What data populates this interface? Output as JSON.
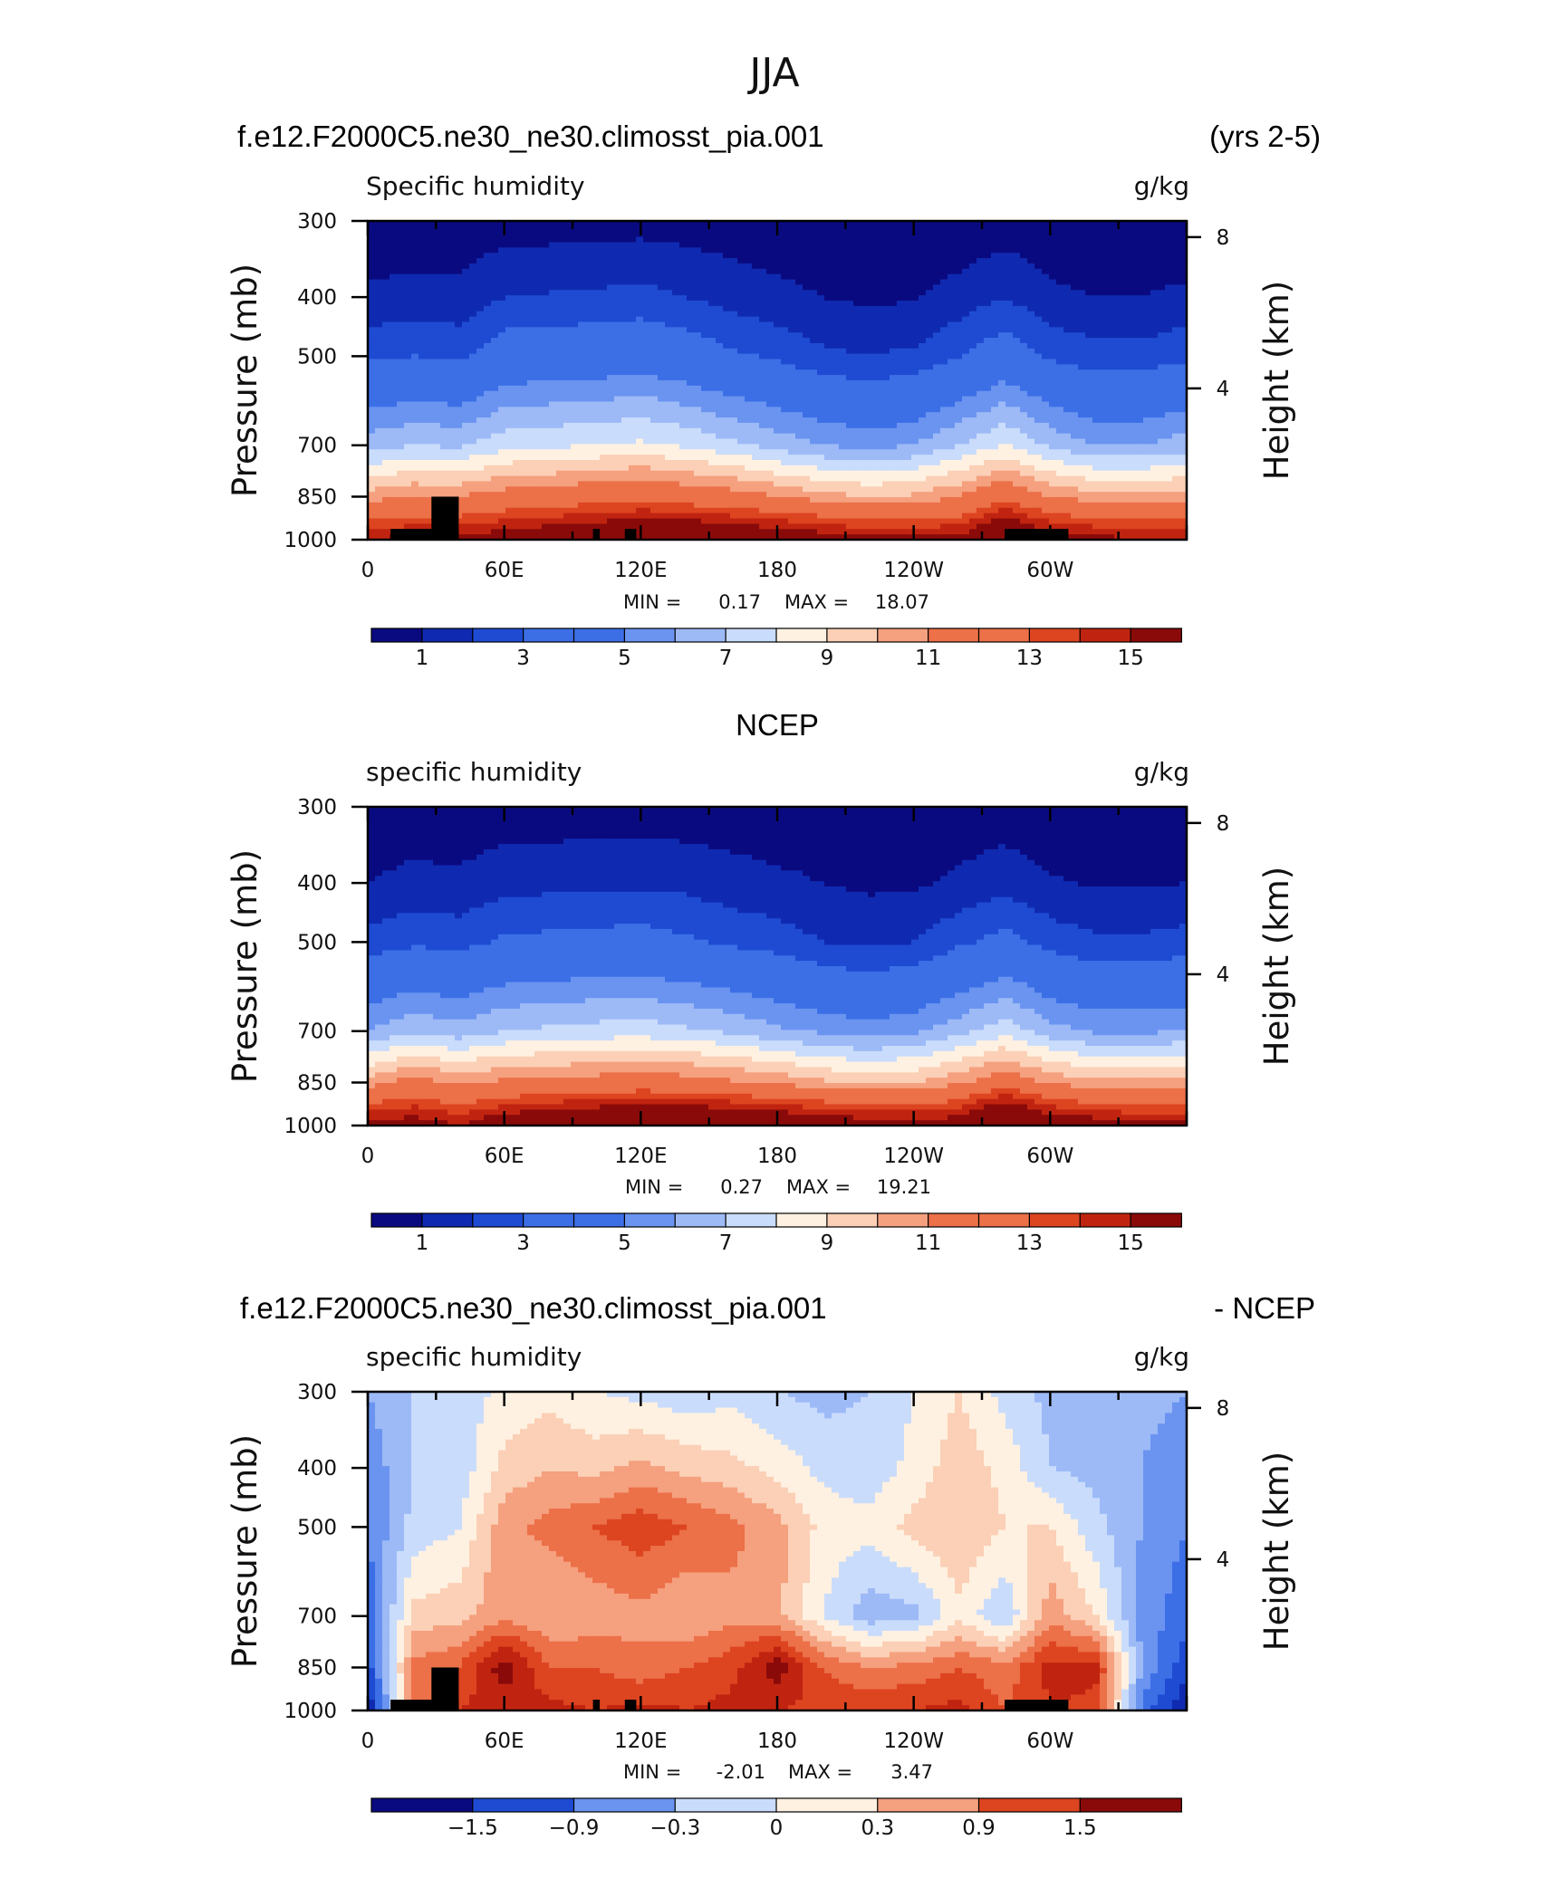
{
  "figure": {
    "title": "JJA",
    "header_left": "f.e12.F2000C5.ne30_ne30.climosst_pia.001",
    "header_right": "(yrs 2-5)",
    "middle_header": "NCEP",
    "bottom_header_left": "f.e12.F2000C5.ne30_ne30.climosst_pia.001",
    "bottom_header_right": "- NCEP"
  },
  "panels": [
    {
      "left_label": "Specific humidity",
      "right_label": "g/kg",
      "ylabel": "Pressure (mb)",
      "y2label": "Height (km)",
      "min_text": "MIN =",
      "min_value": "0.17",
      "max_text": "MAX =",
      "max_value": "18.07",
      "colorbar_labels": [
        "1",
        "3",
        "5",
        "7",
        "9",
        "11",
        "13",
        "15"
      ]
    },
    {
      "left_label": "specific humidity",
      "right_label": "g/kg",
      "ylabel": "Pressure (mb)",
      "y2label": "Height (km)",
      "min_text": "MIN =",
      "min_value": "0.27",
      "max_text": "MAX =",
      "max_value": "19.21",
      "colorbar_labels": [
        "1",
        "3",
        "5",
        "7",
        "9",
        "11",
        "13",
        "15"
      ]
    },
    {
      "left_label": "specific humidity",
      "right_label": "g/kg",
      "ylabel": "Pressure (mb)",
      "y2label": "Height (km)",
      "min_text": "MIN =",
      "min_value": "-2.01",
      "max_text": "MAX =",
      "max_value": "3.47",
      "colorbar_labels": [
        "−1.5",
        "−0.9",
        "−0.3",
        "0",
        "0.3",
        "0.9",
        "1.5"
      ]
    }
  ],
  "axes": {
    "x_ticks": [
      "0",
      "60E",
      "120E",
      "180",
      "120W",
      "60W"
    ],
    "y_ticks": [
      "300",
      "400",
      "500",
      "700",
      "850",
      "1000"
    ],
    "y2_ticks": [
      "8",
      "4"
    ]
  },
  "colors": {
    "palette": [
      "#0a0a80",
      "#0f2ab0",
      "#1e4bd2",
      "#3c6fe6",
      "#6a94f0",
      "#9dbaf7",
      "#cadcfb",
      "#fff1e1",
      "#fbd0b6",
      "#f5a07e",
      "#ec7048",
      "#dd4420",
      "#c02410",
      "#8a0a0a"
    ],
    "topography": "#000000"
  },
  "chart_data": [
    {
      "type": "heatmap",
      "title": "Specific humidity",
      "units": "g/kg",
      "xlabel": "",
      "ylabel": "Pressure (mb)",
      "y2label": "Height (km)",
      "x": [
        0,
        20,
        40,
        60,
        80,
        100,
        120,
        140,
        160,
        180,
        200,
        220,
        240,
        260,
        280,
        300,
        320,
        340
      ],
      "y": [
        300,
        400,
        500,
        700,
        850,
        1000
      ],
      "z": [
        [
          0.2,
          0.2,
          0.3,
          0.5,
          0.5,
          0.5,
          0.6,
          0.5,
          0.4,
          0.3,
          0.2,
          0.2,
          0.2,
          0.2,
          0.4,
          0.3,
          0.2,
          0.2
        ],
        [
          1.2,
          1.4,
          1.3,
          2.0,
          2.1,
          2.2,
          2.3,
          2.0,
          1.6,
          1.3,
          1.0,
          0.8,
          0.9,
          1.4,
          2.0,
          1.2,
          1.0,
          1.0
        ],
        [
          2.8,
          3.0,
          2.8,
          3.8,
          3.9,
          4.0,
          4.2,
          3.8,
          3.2,
          2.8,
          2.2,
          2.0,
          2.2,
          3.0,
          3.8,
          2.8,
          2.4,
          2.4
        ],
        [
          6.5,
          7.0,
          6.8,
          7.6,
          7.8,
          8.0,
          8.2,
          7.8,
          7.2,
          6.6,
          6.0,
          5.6,
          6.0,
          7.0,
          8.0,
          6.8,
          6.0,
          6.0
        ],
        [
          10.5,
          11.0,
          11.0,
          11.6,
          11.8,
          12.2,
          12.4,
          12.0,
          11.6,
          11.0,
          10.4,
          10.0,
          10.2,
          11.0,
          12.4,
          11.0,
          10.4,
          10.4
        ],
        [
          15.0,
          15.5,
          15.5,
          16.0,
          16.5,
          17.0,
          17.5,
          17.5,
          17.0,
          16.5,
          16.0,
          15.5,
          15.5,
          15.5,
          18.0,
          16.0,
          15.5,
          15.0
        ]
      ],
      "zlim": [
        0,
        16
      ],
      "levels": [
        1,
        2,
        3,
        4,
        5,
        6,
        7,
        8,
        9,
        10,
        11,
        12,
        13,
        14,
        15
      ],
      "min": 0.17,
      "max": 18.07,
      "topography_lon": [
        [
          10,
          40
        ],
        [
          28,
          40
        ],
        [
          99,
          102
        ],
        [
          113,
          118
        ],
        [
          280,
          308
        ]
      ]
    },
    {
      "type": "heatmap",
      "title": "specific humidity",
      "units": "g/kg",
      "xlabel": "",
      "ylabel": "Pressure (mb)",
      "y2label": "Height (km)",
      "x": [
        0,
        20,
        40,
        60,
        80,
        100,
        120,
        140,
        160,
        180,
        200,
        220,
        240,
        260,
        280,
        300,
        320,
        340
      ],
      "y": [
        300,
        400,
        500,
        700,
        850,
        1000
      ],
      "z": [
        [
          0.3,
          0.3,
          0.3,
          0.4,
          0.4,
          0.4,
          0.5,
          0.4,
          0.4,
          0.3,
          0.3,
          0.3,
          0.3,
          0.3,
          0.4,
          0.3,
          0.3,
          0.3
        ],
        [
          1.0,
          1.3,
          1.2,
          1.6,
          1.7,
          1.8,
          1.8,
          1.7,
          1.4,
          1.2,
          1.0,
          0.8,
          0.8,
          1.2,
          1.6,
          1.1,
          0.9,
          0.9
        ],
        [
          2.4,
          2.8,
          2.6,
          3.2,
          3.3,
          3.4,
          3.5,
          3.2,
          2.8,
          2.5,
          2.0,
          1.8,
          2.0,
          2.8,
          3.4,
          2.6,
          2.2,
          2.2
        ],
        [
          6.0,
          6.8,
          6.4,
          7.0,
          7.2,
          7.4,
          7.5,
          7.2,
          6.8,
          6.2,
          5.8,
          5.4,
          5.8,
          6.6,
          7.6,
          6.4,
          5.8,
          5.8
        ],
        [
          10.5,
          11.5,
          10.8,
          11.2,
          11.4,
          11.6,
          11.8,
          11.6,
          11.2,
          10.8,
          10.2,
          9.8,
          10.0,
          10.8,
          12.0,
          10.8,
          10.2,
          10.2
        ],
        [
          15.5,
          16.0,
          15.0,
          16.5,
          17.0,
          17.5,
          18.0,
          18.0,
          17.5,
          17.0,
          16.5,
          16.0,
          16.0,
          16.0,
          19.0,
          16.5,
          16.0,
          15.5
        ]
      ],
      "zlim": [
        0,
        16
      ],
      "levels": [
        1,
        2,
        3,
        4,
        5,
        6,
        7,
        8,
        9,
        10,
        11,
        12,
        13,
        14,
        15
      ],
      "min": 0.27,
      "max": 19.21
    },
    {
      "type": "heatmap",
      "title": "specific humidity",
      "units": "g/kg",
      "xlabel": "",
      "ylabel": "Pressure (mb)",
      "y2label": "Height (km)",
      "x": [
        0,
        20,
        40,
        60,
        80,
        100,
        120,
        140,
        160,
        180,
        200,
        220,
        240,
        260,
        280,
        300,
        320,
        340
      ],
      "y": [
        300,
        400,
        500,
        700,
        850,
        1000
      ],
      "z": [
        [
          -0.6,
          -0.3,
          -0.2,
          0.1,
          0.2,
          0.0,
          -0.1,
          -0.2,
          -0.1,
          -0.3,
          -0.4,
          -0.3,
          0.0,
          0.3,
          -0.1,
          -0.4,
          -0.5,
          -0.5
        ],
        [
          -0.8,
          -0.3,
          -0.2,
          0.4,
          0.6,
          0.5,
          0.7,
          0.5,
          0.4,
          0.2,
          -0.1,
          -0.2,
          0.1,
          0.5,
          0.2,
          -0.3,
          -0.4,
          -0.6
        ],
        [
          -0.9,
          -0.2,
          0.0,
          0.8,
          1.0,
          1.2,
          1.4,
          1.2,
          1.0,
          0.7,
          0.2,
          0.1,
          0.4,
          0.6,
          0.3,
          0.3,
          -0.2,
          -0.6
        ],
        [
          -1.1,
          0.4,
          0.5,
          0.8,
          0.6,
          0.7,
          0.8,
          0.6,
          0.8,
          0.7,
          0.0,
          -0.5,
          -0.4,
          0.2,
          -0.3,
          0.8,
          0.3,
          -0.7
        ],
        [
          -1.4,
          1.0,
          1.2,
          2.0,
          1.2,
          1.2,
          1.0,
          1.2,
          1.4,
          2.0,
          1.2,
          0.9,
          1.0,
          1.2,
          1.0,
          1.6,
          1.6,
          -0.6
        ],
        [
          -1.8,
          1.0,
          1.5,
          1.6,
          1.6,
          1.5,
          1.6,
          1.5,
          1.6,
          1.5,
          1.4,
          1.5,
          1.5,
          1.6,
          1.2,
          1.5,
          1.4,
          -1.0
        ]
      ],
      "zlim": [
        -2.1,
        2.1
      ],
      "levels": [
        -1.8,
        -1.5,
        -1.2,
        -0.9,
        -0.6,
        -0.3,
        0,
        0.3,
        0.6,
        0.9,
        1.2,
        1.5,
        1.8
      ],
      "min": -2.01,
      "max": 3.47,
      "topography_lon": [
        [
          10,
          40
        ],
        [
          28,
          40
        ],
        [
          99,
          102
        ],
        [
          113,
          118
        ],
        [
          280,
          308
        ]
      ]
    }
  ]
}
